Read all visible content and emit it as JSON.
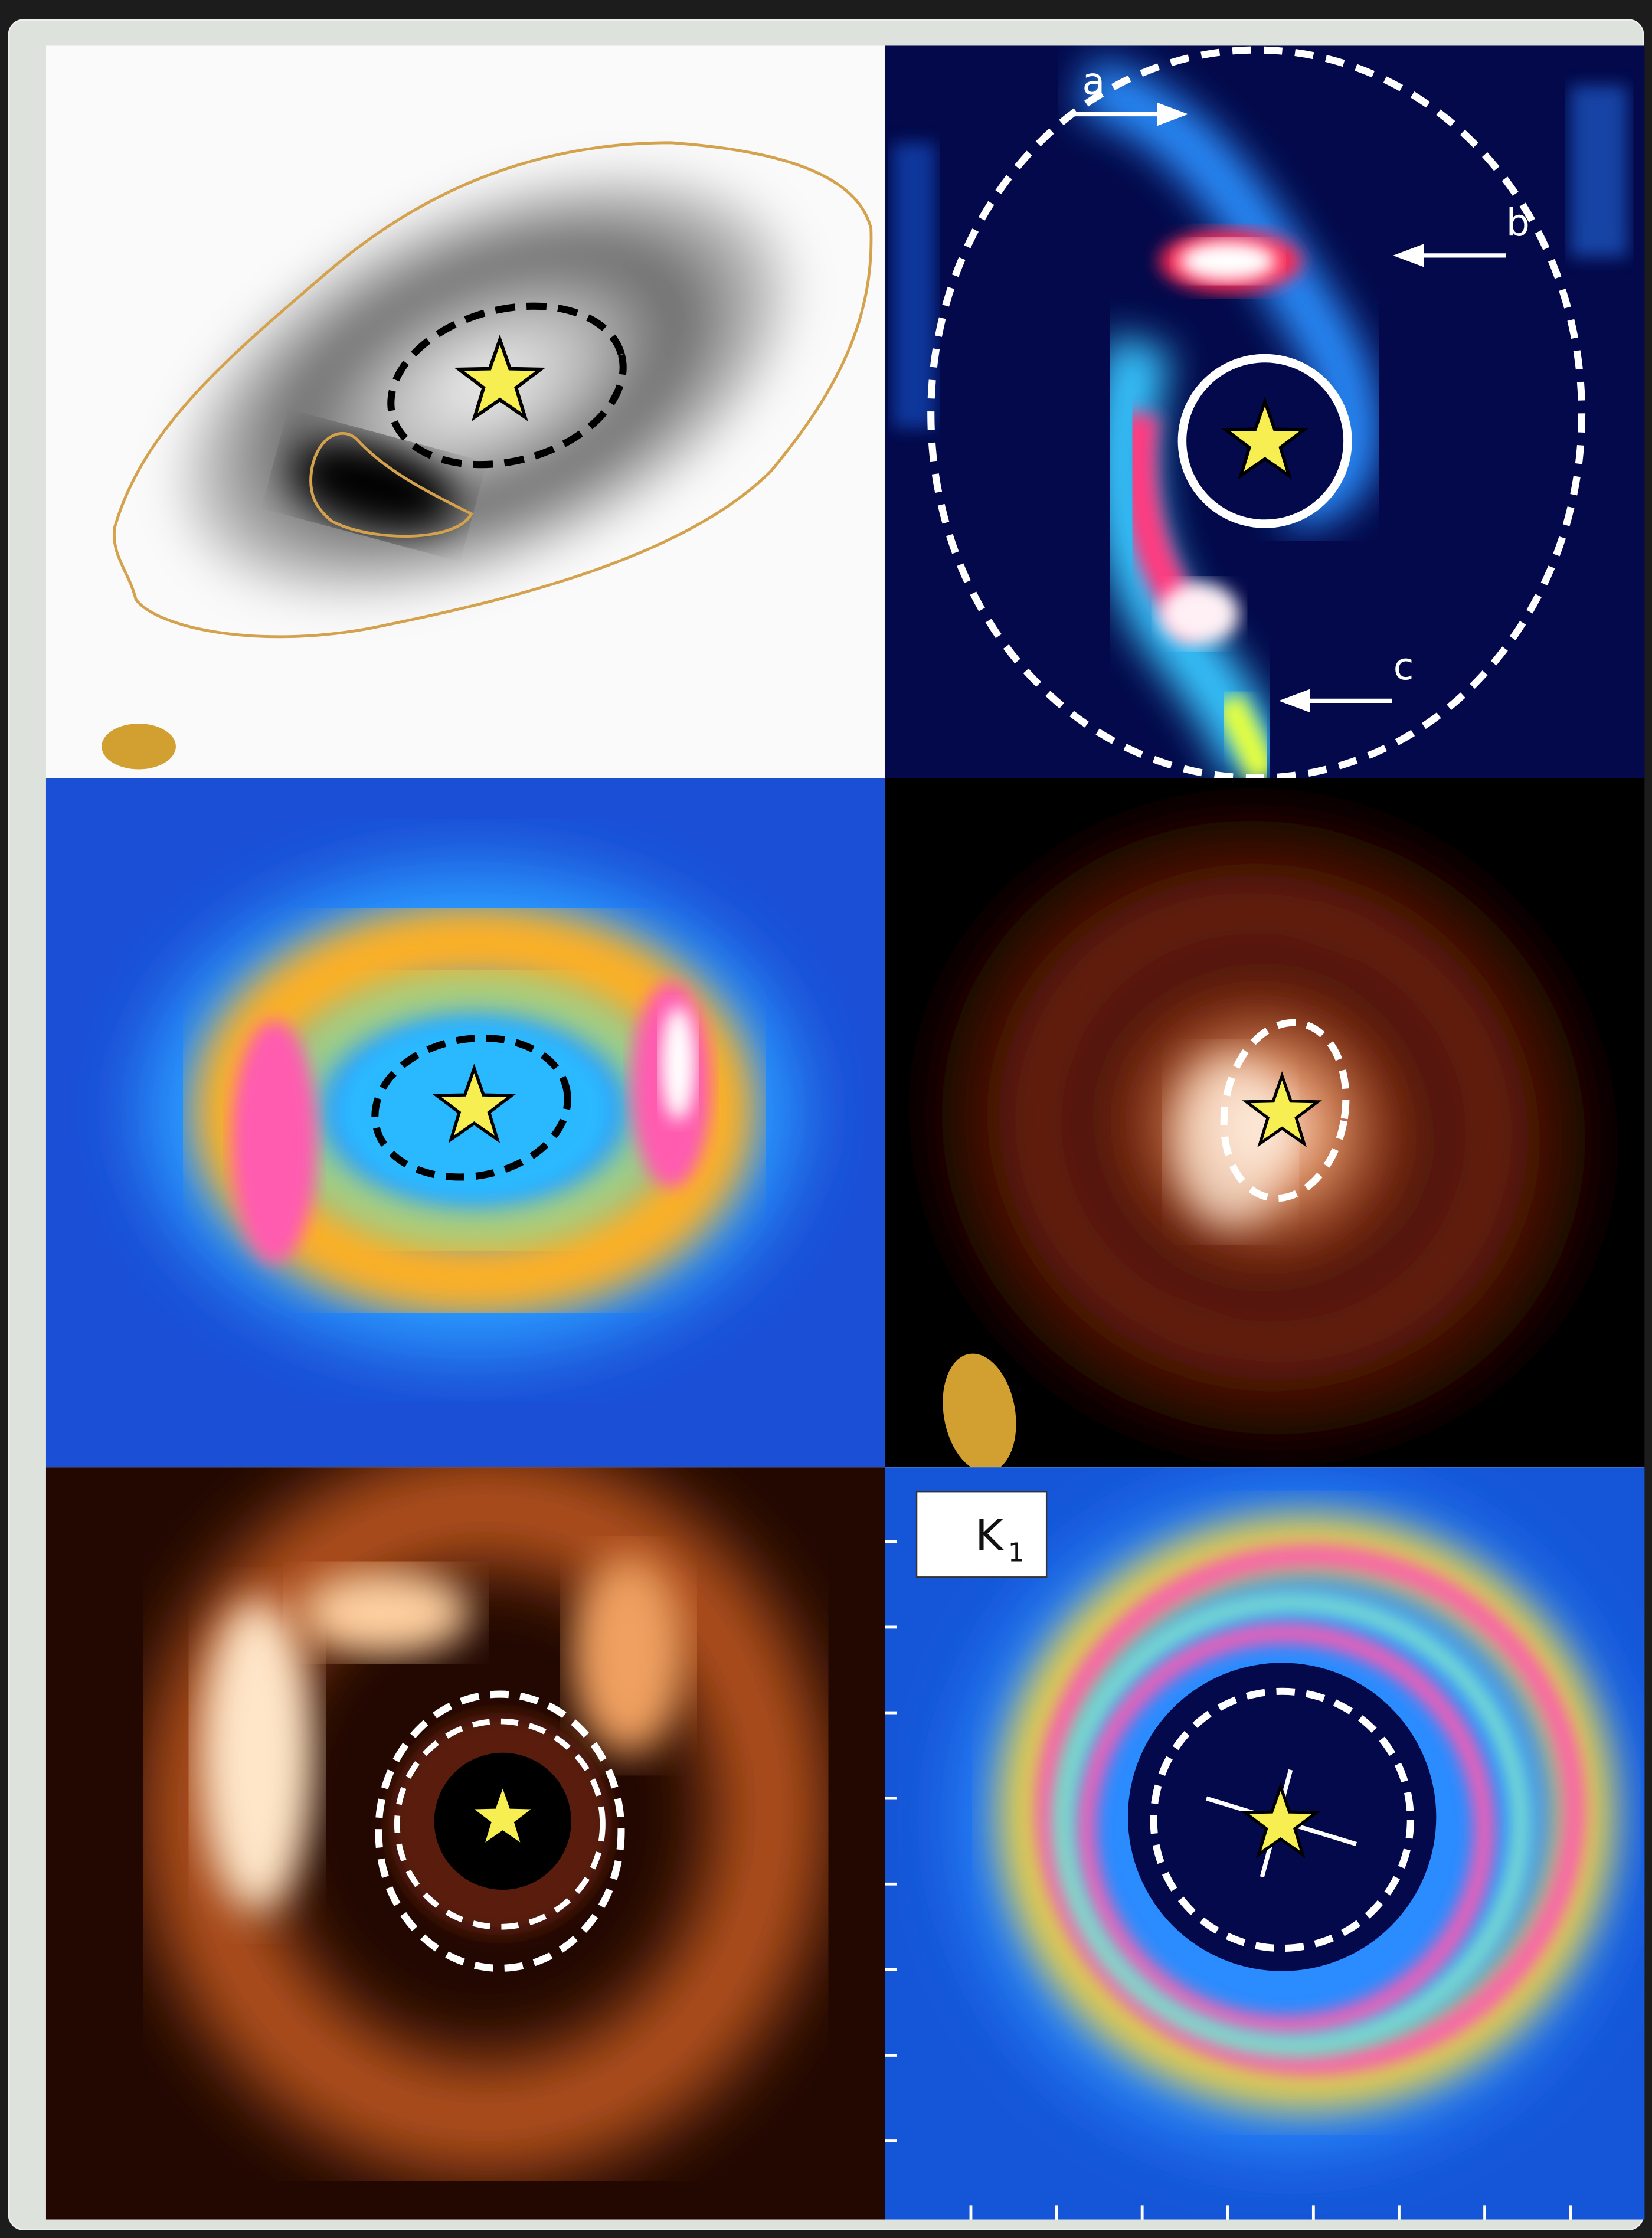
{
  "annotations": {
    "arrow_labels": [
      "a",
      "b",
      "c"
    ],
    "band_label": "K",
    "band_subscript": "1"
  }
}
